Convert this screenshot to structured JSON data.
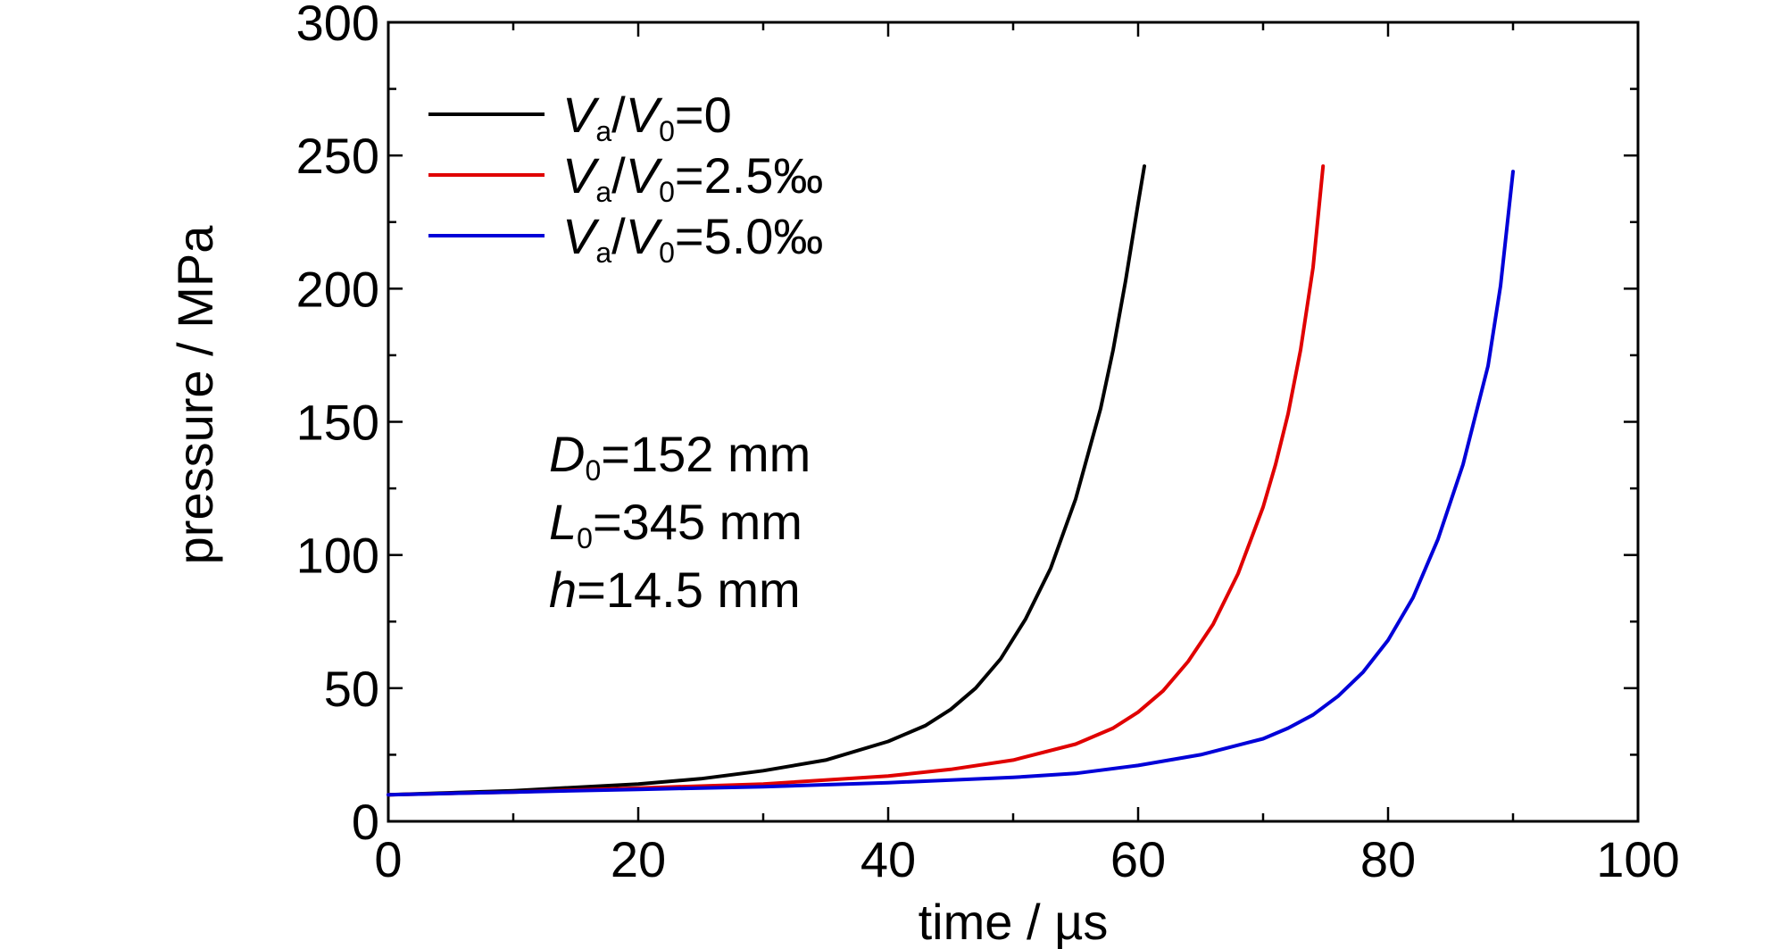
{
  "chart_data": {
    "type": "line",
    "xlabel": "time / µs",
    "ylabel": "pressure / MPa",
    "xlim": [
      0,
      100
    ],
    "ylim": [
      0,
      300
    ],
    "x_ticks": [
      "0",
      "20",
      "40",
      "60",
      "80",
      "100"
    ],
    "y_ticks": [
      "0",
      "50",
      "100",
      "150",
      "200",
      "250",
      "300"
    ],
    "grid": false,
    "legend_position": "top-left",
    "legend": [
      {
        "main": "V",
        "sub": "a",
        "mid": "/V",
        "sub2": "0",
        "tail": "=0"
      },
      {
        "main": "V",
        "sub": "a",
        "mid": "/V",
        "sub2": "0",
        "tail": "=2.5‰"
      },
      {
        "main": "V",
        "sub": "a",
        "mid": "/V",
        "sub2": "0",
        "tail": "=5.0‰"
      }
    ],
    "annotations": [
      {
        "main": "D",
        "sub": "0",
        "tail": "=152 mm"
      },
      {
        "main": "L",
        "sub": "0",
        "tail": "=345 mm"
      },
      {
        "main": "h",
        "sub": "",
        "tail": "=14.5 mm"
      }
    ],
    "series": [
      {
        "name": "Va/V0=0",
        "color": "#000000",
        "x": [
          0,
          10,
          20,
          25,
          30,
          35,
          40,
          43,
          45,
          47,
          49,
          51,
          53,
          55,
          57,
          58,
          59,
          60,
          60.5
        ],
        "y": [
          10,
          11.5,
          14,
          16,
          19,
          23,
          30,
          36,
          42,
          50,
          61,
          76,
          95,
          121,
          155,
          177,
          203,
          232,
          246
        ]
      },
      {
        "name": "Va/V0=2.5‰",
        "color": "#e00000",
        "x": [
          0,
          10,
          20,
          30,
          40,
          45,
          50,
          55,
          58,
          60,
          62,
          64,
          66,
          68,
          70,
          71,
          72,
          73,
          74,
          74.8
        ],
        "y": [
          10,
          11,
          12.5,
          14,
          17,
          19.5,
          23,
          29,
          35,
          41,
          49,
          60,
          74,
          93,
          118,
          134,
          153,
          177,
          208,
          246
        ]
      },
      {
        "name": "Va/V0=5.0‰",
        "color": "#0000d8",
        "x": [
          0,
          10,
          20,
          30,
          40,
          50,
          55,
          60,
          65,
          70,
          72,
          74,
          76,
          78,
          80,
          82,
          84,
          86,
          88,
          89,
          90
        ],
        "y": [
          10,
          11,
          12,
          13,
          14.5,
          16.5,
          18,
          21,
          25,
          31,
          35,
          40,
          47,
          56,
          68,
          84,
          106,
          134,
          171,
          201,
          244
        ]
      }
    ]
  }
}
